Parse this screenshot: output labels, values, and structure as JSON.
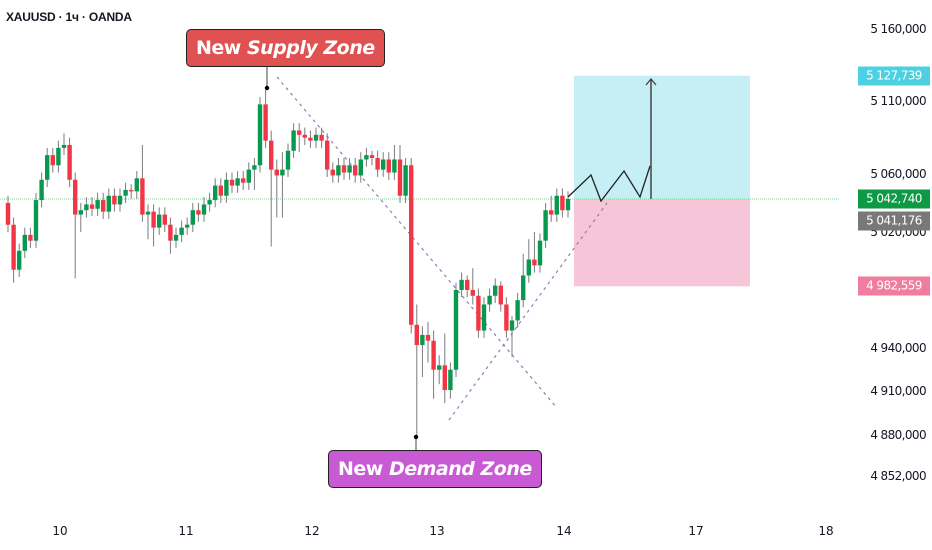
{
  "header": {
    "symbol_line": "XAUUSD · 1ч · OANDA"
  },
  "annotations": {
    "supply_label": {
      "word1": "New",
      "word2": "Supply Zone",
      "color": "#e05252"
    },
    "demand_label": {
      "word1": "New",
      "word2": "Demand Zone",
      "color": "#c85bd4"
    }
  },
  "price_labels": {
    "target": {
      "text": "5 127,739",
      "value": 5127.739,
      "color": "#4dd0e1"
    },
    "last": {
      "text": "5 042,740",
      "value": 5042.74,
      "color": "#0e9a45"
    },
    "prev": {
      "text": "5 041,176",
      "value": 5041.176,
      "color": "#787878"
    },
    "stop": {
      "text": "4 982,559",
      "value": 4982.559,
      "color": "#f07ca0"
    }
  },
  "chart_data": {
    "type": "candlestick",
    "title": "",
    "colors": {
      "up": "#089950",
      "down": "#f23645",
      "target_zone": "#c6eff5",
      "stop_zone": "#f6c5d7",
      "trendline": "#8a7fb8"
    },
    "y_ticks": [
      {
        "value": 5160,
        "label": "5 160,000"
      },
      {
        "value": 5110,
        "label": "5 110,000"
      },
      {
        "value": 5060,
        "label": "5 060,000"
      },
      {
        "value": 5020,
        "label": "5 020,000"
      },
      {
        "value": 4940,
        "label": "4 940,000"
      },
      {
        "value": 4910,
        "label": "4 910,000"
      },
      {
        "value": 4880,
        "label": "4 880,000"
      },
      {
        "value": 4852,
        "label": "4 852,000"
      }
    ],
    "x_ticks": [
      "10",
      "11",
      "12",
      "13",
      "14",
      "17",
      "18"
    ],
    "ylim": [
      4835,
      5180
    ],
    "position": {
      "entry": 5042.74,
      "target": 5127.739,
      "stop": 4982.559
    },
    "candles": [
      [
        5040,
        5045,
        5020,
        5025
      ],
      [
        5025,
        5030,
        4985,
        4994
      ],
      [
        4994,
        5012,
        4989,
        5007
      ],
      [
        5007,
        5023,
        5002,
        5018
      ],
      [
        5018,
        5023,
        5009,
        5014
      ],
      [
        5014,
        5047,
        5009,
        5042
      ],
      [
        5042,
        5061,
        5037,
        5056
      ],
      [
        5056,
        5078,
        5051,
        5073
      ],
      [
        5073,
        5078,
        5061,
        5066
      ],
      [
        5066,
        5083,
        5061,
        5078
      ],
      [
        5078,
        5088,
        5073,
        5080
      ],
      [
        5080,
        5085,
        5051,
        5056
      ],
      [
        5056,
        5061,
        4988,
        5032
      ],
      [
        5032,
        5040,
        5020,
        5035
      ],
      [
        5035,
        5044,
        5030,
        5039
      ],
      [
        5039,
        5044,
        5031,
        5036
      ],
      [
        5036,
        5047,
        5031,
        5042
      ],
      [
        5042,
        5047,
        5029,
        5034
      ],
      [
        5034,
        5050,
        5029,
        5045
      ],
      [
        5045,
        5050,
        5034,
        5039
      ],
      [
        5039,
        5050,
        5034,
        5045
      ],
      [
        5045,
        5054,
        5040,
        5049
      ],
      [
        5049,
        5053,
        5043,
        5048
      ],
      [
        5048,
        5062,
        5043,
        5057
      ],
      [
        5057,
        5080,
        5027,
        5032
      ],
      [
        5032,
        5039,
        5015,
        5034
      ],
      [
        5034,
        5039,
        5010,
        5023
      ],
      [
        5023,
        5037,
        5018,
        5032
      ],
      [
        5032,
        5037,
        5020,
        5025
      ],
      [
        5025,
        5030,
        5005,
        5014
      ],
      [
        5014,
        5023,
        5009,
        5018
      ],
      [
        5018,
        5028,
        5013,
        5023
      ],
      [
        5023,
        5030,
        5018,
        5025
      ],
      [
        5025,
        5040,
        5020,
        5035
      ],
      [
        5035,
        5040,
        5027,
        5032
      ],
      [
        5032,
        5044,
        5027,
        5039
      ],
      [
        5039,
        5047,
        5034,
        5042
      ],
      [
        5042,
        5057,
        5037,
        5052
      ],
      [
        5052,
        5057,
        5040,
        5045
      ],
      [
        5045,
        5061,
        5040,
        5056
      ],
      [
        5056,
        5061,
        5047,
        5052
      ],
      [
        5052,
        5062,
        5047,
        5057
      ],
      [
        5057,
        5062,
        5049,
        5054
      ],
      [
        5054,
        5068,
        5049,
        5063
      ],
      [
        5063,
        5071,
        5049,
        5066
      ],
      [
        5066,
        5113,
        5061,
        5108
      ],
      [
        5108,
        5118,
        5078,
        5083
      ],
      [
        5083,
        5090,
        5010,
        5063
      ],
      [
        5063,
        5070,
        5030,
        5059
      ],
      [
        5059,
        5075,
        5030,
        5063
      ],
      [
        5063,
        5081,
        5058,
        5076
      ],
      [
        5076,
        5095,
        5071,
        5090
      ],
      [
        5090,
        5095,
        5075,
        5087
      ],
      [
        5087,
        5092,
        5080,
        5085
      ],
      [
        5085,
        5090,
        5078,
        5083
      ],
      [
        5083,
        5092,
        5078,
        5087
      ],
      [
        5087,
        5092,
        5078,
        5083
      ],
      [
        5083,
        5088,
        5058,
        5063
      ],
      [
        5063,
        5068,
        5054,
        5059
      ],
      [
        5059,
        5071,
        5054,
        5066
      ],
      [
        5066,
        5071,
        5056,
        5061
      ],
      [
        5061,
        5071,
        5056,
        5066
      ],
      [
        5066,
        5071,
        5054,
        5059
      ],
      [
        5059,
        5075,
        5054,
        5070
      ],
      [
        5070,
        5078,
        5065,
        5073
      ],
      [
        5073,
        5076,
        5066,
        5071
      ],
      [
        5071,
        5076,
        5058,
        5063
      ],
      [
        5063,
        5075,
        5058,
        5070
      ],
      [
        5070,
        5075,
        5056,
        5061
      ],
      [
        5061,
        5080,
        5056,
        5070
      ],
      [
        5070,
        5080,
        5040,
        5045
      ],
      [
        5045,
        5071,
        5040,
        5066
      ],
      [
        5066,
        5071,
        4950,
        4956
      ],
      [
        4956,
        4970,
        4878,
        4942
      ],
      [
        4942,
        4955,
        4920,
        4949
      ],
      [
        4949,
        4958,
        4930,
        4945
      ],
      [
        4945,
        4952,
        4905,
        4925
      ],
      [
        4925,
        4935,
        4915,
        4928
      ],
      [
        4928,
        4950,
        4902,
        4911
      ],
      [
        4911,
        4930,
        4905,
        4925
      ],
      [
        4925,
        4985,
        4920,
        4980
      ],
      [
        4980,
        4992,
        4975,
        4987
      ],
      [
        4987,
        4990,
        4975,
        4980
      ],
      [
        4980,
        4995,
        4970,
        4976
      ],
      [
        4976,
        4981,
        4947,
        4952
      ],
      [
        4952,
        4975,
        4947,
        4970
      ],
      [
        4970,
        4981,
        4965,
        4976
      ],
      [
        4976,
        4988,
        4971,
        4983
      ],
      [
        4983,
        4986,
        4965,
        4970
      ],
      [
        4970,
        4975,
        4947,
        4952
      ],
      [
        4952,
        4962,
        4934,
        4959
      ],
      [
        4959,
        4978,
        4954,
        4973
      ],
      [
        4973,
        5005,
        4968,
        4990
      ],
      [
        4990,
        5015,
        4985,
        5001
      ],
      [
        5001,
        5020,
        4992,
        4997
      ],
      [
        4997,
        5019,
        4992,
        5014
      ],
      [
        5014,
        5040,
        5009,
        5035
      ],
      [
        5035,
        5045,
        5027,
        5032
      ],
      [
        5032,
        5050,
        5027,
        5045
      ],
      [
        5045,
        5050,
        5030,
        5035
      ],
      [
        5035,
        5048,
        5030,
        5042.74
      ]
    ]
  }
}
